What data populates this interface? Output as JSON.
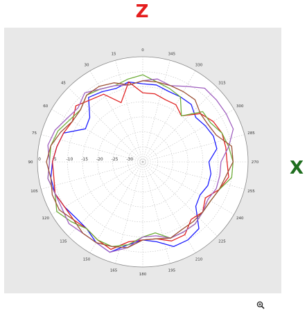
{
  "labels": {
    "top_axis": "Z",
    "right_axis": "X"
  },
  "icons": {
    "zoom": "zoom-in-icon"
  },
  "colors": {
    "panel": "#e8e8e8",
    "top_axis": "#e41e1e",
    "right_axis": "#1f6e1f"
  },
  "chart_data": {
    "type": "polar-line",
    "angle_labels": [
      "0",
      "15",
      "30",
      "45",
      "60",
      "75",
      "90",
      "105",
      "120",
      "135",
      "150",
      "165",
      "180",
      "195",
      "210",
      "225",
      "240",
      "255",
      "270",
      "285",
      "300",
      "315",
      "330",
      "345"
    ],
    "radial_labels": [
      "0",
      "-5",
      "-10",
      "-15",
      "-20",
      "-25",
      "-30"
    ],
    "radial_range": [
      -35,
      0
    ],
    "grid": true,
    "series": [
      {
        "color": "#1a1aff",
        "angles": [
          0,
          10,
          20,
          30,
          40,
          50,
          60,
          70,
          80,
          90,
          100,
          110,
          120,
          130,
          140,
          150,
          160,
          170,
          180,
          190,
          200,
          210,
          220,
          230,
          240,
          250,
          260,
          270,
          280,
          290,
          300,
          310,
          320,
          330,
          340,
          350
        ],
        "values": [
          -9,
          -8,
          -9,
          -8,
          -7,
          -12,
          -13,
          -7,
          -6,
          -5,
          -4,
          -4,
          -5,
          -6,
          -6,
          -4,
          -3,
          -7,
          -9,
          -8,
          -5,
          -5,
          -6,
          -12,
          -13,
          -12,
          -12,
          -13,
          -10,
          -10,
          -11,
          -12,
          -10,
          -10,
          -10,
          -9
        ]
      },
      {
        "color": "#e02020",
        "angles": [
          0,
          10,
          20,
          30,
          40,
          50,
          60,
          70,
          80,
          90,
          100,
          110,
          120,
          130,
          140,
          150,
          160,
          170,
          180,
          190,
          200,
          210,
          220,
          230,
          240,
          250,
          260,
          270,
          280,
          290,
          300,
          310,
          320,
          330,
          340,
          350
        ],
        "values": [
          -12,
          -8,
          -14,
          -9,
          -8,
          -6,
          -8,
          -7,
          -6,
          -5,
          -5,
          -4,
          -5,
          -5,
          -6,
          -5,
          -4,
          -8,
          -9,
          -9,
          -7,
          -7,
          -10,
          -9,
          -11,
          -8,
          -6,
          -7,
          -7,
          -7,
          -8,
          -10,
          -15,
          -13,
          -13,
          -12
        ]
      },
      {
        "color": "#6fae3a",
        "angles": [
          0,
          10,
          20,
          30,
          40,
          50,
          60,
          70,
          80,
          90,
          100,
          110,
          120,
          130,
          140,
          150,
          160,
          170,
          180,
          190,
          200,
          210,
          220,
          230,
          240,
          250,
          260,
          270,
          280,
          290,
          300,
          310,
          320,
          330,
          340,
          350
        ],
        "values": [
          -6,
          -7,
          -8,
          -7,
          -6,
          -8,
          -7,
          -5,
          -4,
          -4,
          -3,
          -4,
          -2,
          -4,
          -6,
          -5,
          -5,
          -7,
          -10,
          -11,
          -8,
          -8,
          -8,
          -9,
          -9,
          -8,
          -5,
          -5,
          -6,
          -7,
          -9,
          -9,
          -15,
          -10,
          -9,
          -8
        ]
      },
      {
        "color": "#a060c0",
        "angles": [
          0,
          10,
          20,
          30,
          40,
          50,
          60,
          70,
          80,
          90,
          100,
          110,
          120,
          130,
          140,
          150,
          160,
          170,
          180,
          190,
          200,
          210,
          220,
          230,
          240,
          250,
          260,
          270,
          280,
          290,
          300,
          310,
          320,
          330,
          340,
          350
        ],
        "values": [
          -8,
          -9,
          -8,
          -7,
          -5,
          -7,
          -6,
          -4,
          -3,
          -4,
          -3,
          -4,
          -4,
          -3,
          -4,
          -4,
          -3,
          -6,
          -10,
          -10,
          -8,
          -8,
          -8,
          -9,
          -10,
          -9,
          -9,
          -9,
          -6,
          -3,
          -3,
          -3,
          -3,
          -6,
          -8,
          -7
        ]
      },
      {
        "color": "#9c5034",
        "angles": [
          0,
          10,
          20,
          30,
          40,
          50,
          60,
          70,
          80,
          90,
          100,
          110,
          120,
          130,
          140,
          150,
          160,
          170,
          180,
          190,
          200,
          210,
          220,
          230,
          240,
          250,
          260,
          270,
          280,
          290,
          300,
          310,
          320,
          330,
          340,
          350
        ],
        "values": [
          -8,
          -9,
          -7,
          -6,
          -6,
          -8,
          -8,
          -6,
          -4,
          -3,
          -4,
          -3,
          -3,
          -5,
          -4,
          -4,
          -5,
          -6,
          -9,
          -9,
          -8,
          -9,
          -9,
          -9,
          -9,
          -8,
          -7,
          -5,
          -5,
          -9,
          -10,
          -10,
          -8,
          -8,
          -8,
          -8
        ]
      }
    ]
  }
}
